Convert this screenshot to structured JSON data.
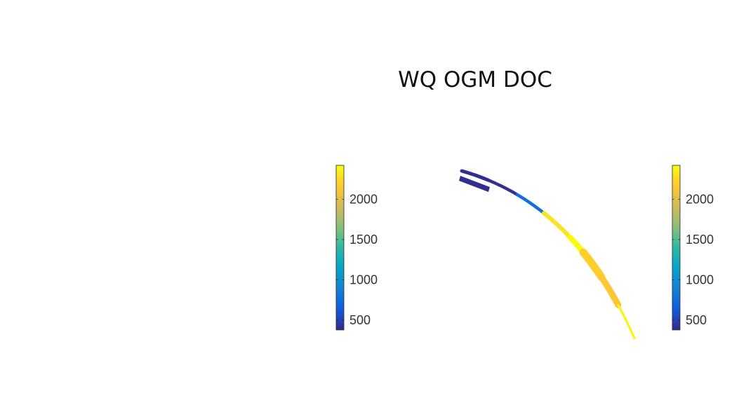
{
  "chart_data": {
    "type": "scatter",
    "title": "WQ OGM DOC",
    "xlabel": "",
    "ylabel": "",
    "grid": false,
    "axes_visible": false,
    "colormap": "parula",
    "colormap_stops": [
      "#352a87",
      "#0f5cdd",
      "#1481d6",
      "#06a4ca",
      "#2eb7a4",
      "#87bf77",
      "#d1bb59",
      "#fec832",
      "#f9fb0e"
    ],
    "color_range": [
      380,
      2420
    ],
    "colorbars": [
      {
        "position": "left",
        "ticks": [
          500,
          1000,
          1500,
          2000
        ],
        "tick_labels": [
          "500",
          "1000",
          "1500",
          "2000"
        ]
      },
      {
        "position": "right",
        "ticks": [
          500,
          1000,
          1500,
          2000
        ],
        "tick_labels": [
          "500",
          "1000",
          "1500",
          "2000"
        ]
      }
    ],
    "map_segments": [
      {
        "from": 0.0,
        "to": 0.12,
        "value": 400
      },
      {
        "from": 0.12,
        "to": 0.26,
        "value": 420
      },
      {
        "from": 0.26,
        "to": 0.4,
        "value": 760
      },
      {
        "from": 0.4,
        "to": 0.55,
        "value": 2300
      },
      {
        "from": 0.55,
        "to": 0.63,
        "value": 2420
      },
      {
        "from": 0.63,
        "to": 0.75,
        "value": 2200
      },
      {
        "from": 0.75,
        "to": 0.87,
        "value": 2150
      },
      {
        "from": 0.87,
        "to": 1.0,
        "value": 2380
      }
    ]
  }
}
